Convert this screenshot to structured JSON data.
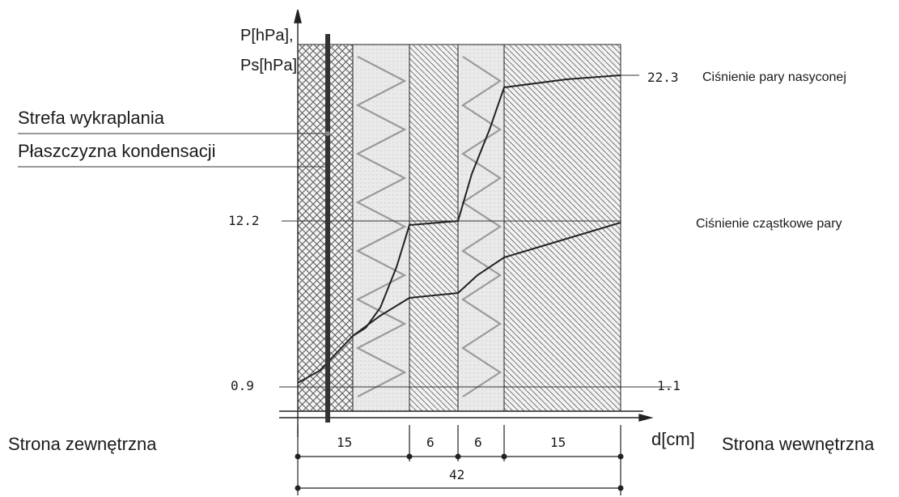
{
  "axes": {
    "y_label_1": "P[hPa],",
    "y_label_2": "Ps[hPa]",
    "x_label": "d[cm]"
  },
  "labels": {
    "zone": "Strefa wykraplania",
    "plane": "Płaszczyzna kondensacji",
    "outside": "Strona zewnętrzna",
    "inside": "Strona wewnętrzna",
    "saturated": "Ciśnienie pary nasyconej",
    "partial": "Ciśnienie cząstkowe pary"
  },
  "values": {
    "ps_inside": "22.3",
    "p_mid": "12.2",
    "p_outside": "0.9",
    "p_inside": "1.1"
  },
  "layers_cm": [
    "15",
    "6",
    "6",
    "15"
  ],
  "total_cm": "42",
  "colors": {
    "line": "#222222",
    "hatch": "#444444",
    "zigzag": "#9a9a9a",
    "fill": "#eeeeee"
  }
}
